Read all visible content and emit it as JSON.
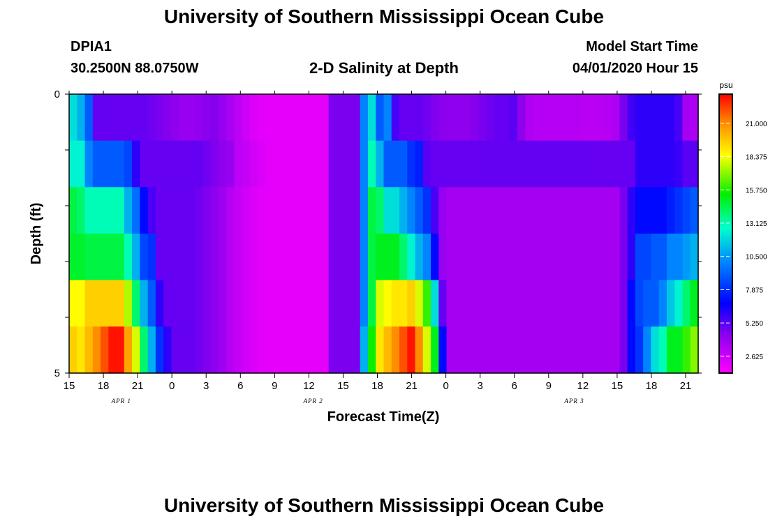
{
  "page": {
    "title": "University of Southern Mississippi Ocean Cube",
    "footer_title": "University of Southern Mississippi Ocean Cube",
    "station": "DPIA1",
    "location": "30.2500N 88.0750W",
    "plot_title": "2-D Salinity at Depth",
    "model_start_label": "Model Start Time",
    "model_start_value": "04/01/2020 Hour 15"
  },
  "chart_data": {
    "type": "heatmap",
    "xlabel": "Forecast Time(Z)",
    "ylabel": "Depth (ft)",
    "x_tick_labels": [
      "15",
      "18",
      "21",
      "0",
      "3",
      "6",
      "9",
      "12",
      "15",
      "18",
      "21",
      "0",
      "3",
      "6",
      "9",
      "12",
      "15",
      "18",
      "21"
    ],
    "date_labels": [
      "APR 1",
      "APR 2",
      "APR 3"
    ],
    "y_tick_labels": [
      "0",
      "5"
    ],
    "ylim": [
      0,
      5
    ],
    "colorbar": {
      "unit": "psu",
      "ticks": [
        "21.000",
        "18.375",
        "15.750",
        "13.125",
        "10.500",
        "7.875",
        "5.250",
        "2.625"
      ],
      "range": [
        1.3,
        23.3
      ]
    },
    "hours": 55,
    "depth_bands": [
      [
        12,
        11,
        9,
        5,
        5,
        5,
        5,
        5,
        5,
        5,
        4.8,
        4.6,
        4.4,
        4.2,
        4.0,
        4.0,
        4.1,
        4.3,
        4.4,
        4.0,
        3.5,
        3,
        2.6,
        2.2,
        2,
        2,
        2,
        2,
        2,
        2,
        2,
        2,
        2,
        4.6,
        4.6,
        4.6,
        4.6,
        10,
        12,
        9,
        10,
        5.5,
        5,
        5,
        5,
        4.8,
        4.5,
        4.3,
        4.2,
        4.2,
        4.2,
        4.4,
        4.6,
        4.8,
        5,
        5,
        5.2,
        4.2,
        3.4,
        3.2,
        3.2,
        3.2,
        3.2,
        3.2,
        3.2,
        3.1,
        3.1,
        3.1,
        3.2,
        3.4,
        4.6,
        5.6,
        6.0,
        6.0,
        6.0,
        6.0,
        6.0,
        5.5,
        3.6,
        3.4
      ],
      [
        12.5,
        12.5,
        10,
        9,
        9,
        9,
        9,
        8.5,
        6,
        5,
        5,
        5,
        5,
        5,
        5,
        5,
        5,
        4.8,
        4.5,
        4.2,
        4.0,
        3.0,
        2.8,
        2.5,
        2.2,
        2,
        2,
        2,
        2,
        2,
        2,
        2,
        2,
        4.6,
        4.6,
        4.6,
        4.6,
        10,
        13,
        11,
        9,
        9,
        9,
        8,
        7.5,
        5.2,
        5,
        5,
        5,
        5,
        5,
        5,
        5,
        5,
        5,
        5,
        5,
        5,
        5,
        5,
        5,
        5,
        5,
        5,
        5,
        5,
        5,
        5,
        5,
        5,
        5,
        5,
        6,
        6,
        6,
        6,
        6,
        5.8,
        5.2,
        5.2
      ],
      [
        14.5,
        14,
        13,
        13,
        13,
        13,
        13,
        11,
        9.5,
        7,
        5.5,
        5,
        5,
        5,
        5,
        5,
        4.8,
        4.5,
        4.2,
        3.8,
        3.2,
        2.8,
        2.5,
        2.2,
        2,
        2,
        2,
        2,
        2,
        2,
        2,
        2,
        2,
        4.6,
        4.6,
        4.6,
        4.6,
        10,
        14.5,
        14,
        12,
        12,
        11,
        10,
        9,
        8,
        5.5,
        4,
        3.6,
        3.6,
        3.6,
        3.6,
        3.6,
        3.6,
        3.6,
        3.6,
        3.6,
        3.6,
        3.6,
        3.6,
        3.6,
        3.6,
        3.6,
        3.6,
        3.6,
        3.6,
        3.6,
        3.6,
        3.6,
        3.6,
        4.6,
        6,
        7,
        7,
        7,
        7,
        7.5,
        8,
        8.5,
        9
      ],
      [
        14.8,
        14.8,
        14.5,
        14.5,
        14.5,
        14.5,
        14.5,
        13,
        11,
        8.5,
        8,
        5,
        5,
        5,
        5,
        5,
        4.8,
        4.5,
        4.2,
        3.8,
        3.2,
        2.8,
        2.5,
        2.2,
        2,
        2,
        2,
        2,
        2,
        2,
        2,
        2,
        2,
        4.6,
        4.6,
        4.6,
        4.6,
        10,
        14.5,
        15,
        15,
        15,
        14,
        12.5,
        11,
        10,
        7,
        4,
        3.6,
        3.6,
        3.6,
        3.6,
        3.6,
        3.6,
        3.6,
        3.6,
        3.6,
        3.6,
        3.6,
        3.6,
        3.6,
        3.6,
        3.6,
        3.6,
        3.6,
        3.6,
        3.6,
        3.6,
        3.6,
        3.6,
        4.6,
        6,
        8.5,
        8.5,
        9,
        9,
        10,
        10,
        10.5,
        11
      ],
      [
        18.5,
        18.5,
        19.5,
        19.5,
        19.5,
        19.5,
        19.5,
        17.5,
        14,
        11,
        9,
        6,
        5,
        5,
        5,
        5,
        4.8,
        4.5,
        4.2,
        3.8,
        3.2,
        2.8,
        2.5,
        2.2,
        2,
        2,
        2,
        2,
        2,
        2,
        2,
        2,
        2,
        4.6,
        4.6,
        4.6,
        4.6,
        10,
        14.5,
        18,
        18.5,
        19,
        19,
        19.5,
        18,
        16,
        12,
        5,
        3.6,
        3.6,
        3.6,
        3.6,
        3.6,
        3.6,
        3.6,
        3.6,
        3.6,
        3.6,
        3.6,
        3.6,
        3.6,
        3.6,
        3.6,
        3.6,
        3.6,
        3.6,
        3.6,
        3.6,
        3.6,
        3.6,
        4.6,
        7,
        8.5,
        9,
        9,
        10,
        11.5,
        12.5,
        14,
        15
      ],
      [
        19.5,
        19,
        20,
        21,
        22,
        23,
        23,
        20.5,
        18,
        14,
        11,
        8,
        6,
        5,
        5,
        5,
        4.8,
        4.5,
        4.2,
        3.8,
        3.2,
        2.8,
        2.5,
        2.2,
        2,
        2,
        2,
        2,
        2,
        2,
        2,
        2,
        2,
        4.6,
        4.6,
        4.6,
        4.6,
        11,
        15.5,
        19,
        20,
        21,
        22,
        23,
        21,
        18,
        15,
        7,
        3.6,
        3.6,
        3.6,
        3.6,
        3.6,
        3.6,
        3.6,
        3.6,
        3.6,
        3.6,
        3.6,
        3.6,
        3.6,
        3.6,
        3.6,
        3.6,
        3.6,
        3.6,
        3.6,
        3.6,
        3.6,
        3.6,
        4.6,
        7,
        8,
        10,
        12,
        13,
        15,
        15,
        16,
        17
      ]
    ]
  }
}
